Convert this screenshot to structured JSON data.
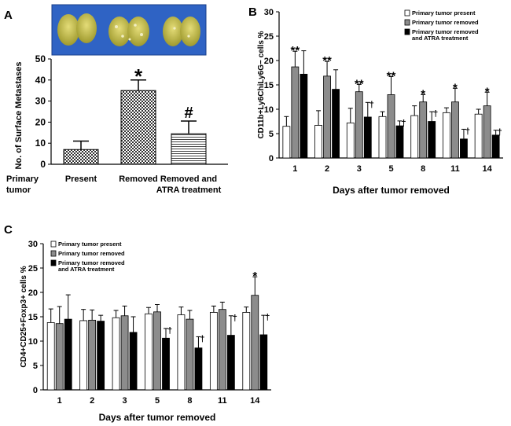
{
  "colors": {
    "present": "#ffffff",
    "removed": "#8c8c8c",
    "atra": "#000000",
    "photo_bg": "#2f63c4",
    "lung": "#c9c14a"
  },
  "chart_data": [
    {
      "panel": "A",
      "type": "bar",
      "ylabel": "No. of Surface Metastases",
      "row_label": [
        "Primary",
        "tumor"
      ],
      "categories": [
        [
          "Present"
        ],
        [
          "Removed"
        ],
        [
          "Removed and",
          "ATRA treatment"
        ]
      ],
      "values": [
        7,
        35,
        14.5
      ],
      "errors": [
        4,
        5,
        6
      ],
      "markers": [
        "",
        "*",
        "#"
      ],
      "patterns": [
        "checker",
        "checker",
        "hlines"
      ],
      "ylim": [
        0,
        50
      ],
      "yticks": [
        0,
        10,
        20,
        30,
        40,
        50
      ]
    },
    {
      "panel": "B",
      "type": "bar",
      "ylabel": "CD11b+Ly6ChiLy6G− cells  %",
      "xlabel": "Days after tumor removed",
      "categories": [
        "1",
        "2",
        "3",
        "5",
        "8",
        "11",
        "14"
      ],
      "ylim": [
        0,
        30
      ],
      "yticks": [
        0,
        5,
        10,
        15,
        20,
        25,
        30
      ],
      "legend": [
        "Primary tumor present",
        "Primary tumor removed",
        "Primary tumor removed",
        "and ATRA treatment"
      ],
      "series": [
        {
          "name": "Primary tumor present",
          "values": [
            6.5,
            6.7,
            7.2,
            8.5,
            8.7,
            9.3,
            9.0
          ],
          "errors": [
            2.0,
            3.0,
            3.0,
            1.0,
            2.0,
            1.0,
            1.0
          ]
        },
        {
          "name": "Primary tumor removed",
          "values": [
            18.7,
            16.8,
            13.6,
            13.0,
            11.5,
            11.5,
            10.7
          ],
          "errors": [
            3.2,
            3.0,
            1.5,
            3.7,
            1.5,
            2.8,
            2.8
          ]
        },
        {
          "name": "Primary tumor removed and ATRA treatment",
          "values": [
            17.2,
            14.1,
            8.4,
            6.6,
            7.5,
            3.9,
            4.7
          ],
          "errors": [
            4.8,
            4.0,
            3.0,
            1.0,
            2.0,
            2.0,
            1.0
          ]
        }
      ],
      "markers_removed": [
        "**",
        "**",
        "**",
        "**",
        "*",
        "*",
        "*"
      ],
      "markers_atra": [
        "",
        "",
        "†",
        "†",
        "†",
        "†",
        "†"
      ]
    },
    {
      "panel": "C",
      "type": "bar",
      "ylabel": "CD4+CD25+Foxp3+ cells  %",
      "xlabel": "Days after tumor removed",
      "categories": [
        "1",
        "2",
        "3",
        "5",
        "8",
        "11",
        "14"
      ],
      "ylim": [
        0,
        30
      ],
      "yticks": [
        0,
        5,
        10,
        15,
        20,
        25,
        30
      ],
      "legend": [
        "Primary tumor present",
        "Primary tumor removed",
        "Primary tumor removed",
        "and ATRA treatment"
      ],
      "series": [
        {
          "name": "Primary tumor present",
          "values": [
            13.8,
            14.2,
            14.8,
            15.6,
            15.4,
            15.9,
            15.9
          ],
          "errors": [
            2.8,
            2.3,
            1.5,
            1.3,
            1.6,
            1.3,
            1.1
          ]
        },
        {
          "name": "Primary tumor removed",
          "values": [
            13.6,
            14.3,
            15.2,
            16.0,
            14.5,
            16.5,
            19.4
          ],
          "errors": [
            3.5,
            2.1,
            2.0,
            1.5,
            1.8,
            1.5,
            3.8
          ]
        },
        {
          "name": "Primary tumor removed and ATRA treatment",
          "values": [
            14.5,
            14.1,
            11.8,
            10.6,
            8.6,
            11.2,
            11.3
          ],
          "errors": [
            5.0,
            1.2,
            3.2,
            2.0,
            2.3,
            4.0,
            4.0
          ]
        }
      ],
      "markers_removed": [
        "",
        "",
        "",
        "",
        "",
        "",
        "*"
      ],
      "markers_atra": [
        "",
        "",
        "",
        "†",
        "†",
        "†",
        "†"
      ]
    }
  ],
  "panel_labels": [
    "A",
    "B",
    "C"
  ]
}
